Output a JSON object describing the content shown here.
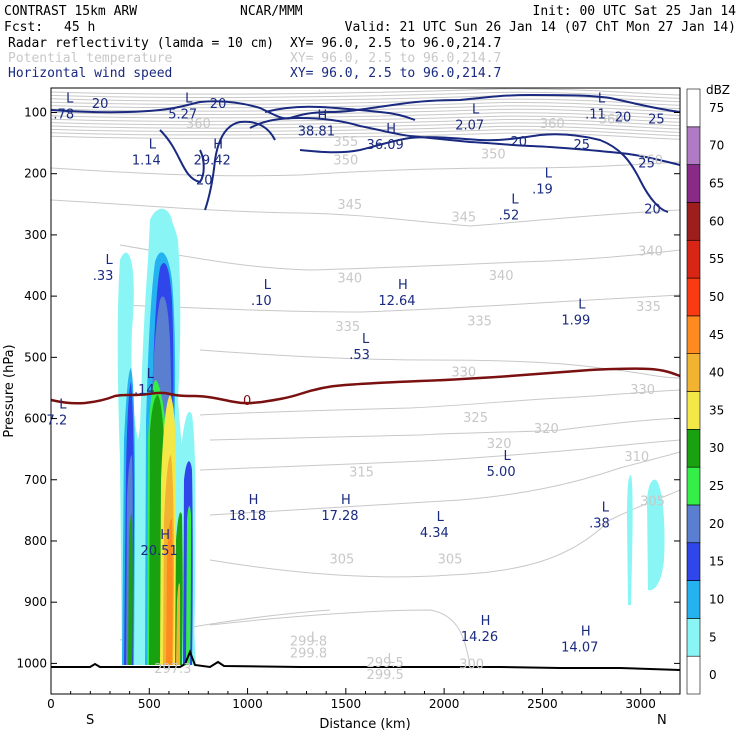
{
  "header": {
    "model": "CONTRAST 15km ARW",
    "center": "NCAR/MMM",
    "init": "Init: 00 UTC Sat 25 Jan 14",
    "fcst_label": "Fcst:",
    "fcst_value": "45 h",
    "valid": "Valid: 21 UTC Sun 26 Jan 14 (07 ChT Mon 27 Jan 14)",
    "fields": [
      {
        "name": "Radar reflectivity (lamda = 10 cm)",
        "xy": "XY=  96.0,  2.5 to  96.0,214.7",
        "color": "#000000"
      },
      {
        "name": "Potential temperature",
        "xy": "XY=  96.0,  2.5 to  96.0,214.7",
        "color": "#c8c8c8"
      },
      {
        "name": "Horizontal wind speed",
        "xy": "XY=  96.0,  2.5 to  96.0,214.7",
        "color": "#1a2a80"
      }
    ]
  },
  "chart_data": {
    "type": "contour-cross-section",
    "xlabel": "Distance (km)",
    "ylabel": "Pressure (hPa)",
    "xlim": [
      0,
      3200
    ],
    "ylim": [
      1050,
      60
    ],
    "xticks": [
      0,
      500,
      1000,
      1500,
      2000,
      2500,
      3000
    ],
    "yticks": [
      100,
      200,
      300,
      400,
      500,
      600,
      700,
      800,
      900,
      1000
    ],
    "x_end_labels": {
      "left": "S",
      "right": "N"
    },
    "colorbar": {
      "unit": "dBZ",
      "levels": [
        "0",
        "5",
        "10",
        "15",
        "20",
        "25",
        "30",
        "35",
        "40",
        "45",
        "50",
        "55",
        "60",
        "65",
        "70",
        "75"
      ],
      "colors": [
        "#ffffff",
        "#8af5f5",
        "#25b2f0",
        "#2f46ea",
        "#5a7ed0",
        "#35ef49",
        "#1aa10f",
        "#f3e845",
        "#f2b330",
        "#ff8a1f",
        "#fa3a12",
        "#d82515",
        "#9e1e1e",
        "#8a2a88",
        "#b07bc4",
        "#ffffff"
      ]
    },
    "theta_labels": [
      {
        "text": "360",
        "x": 750,
        "p": 125
      },
      {
        "text": "355",
        "x": 1500,
        "p": 155
      },
      {
        "text": "350",
        "x": 1500,
        "p": 185
      },
      {
        "text": "350",
        "x": 2250,
        "p": 175
      },
      {
        "text": "360",
        "x": 2550,
        "p": 125
      },
      {
        "text": "360",
        "x": 2850,
        "p": 118
      },
      {
        "text": "360",
        "x": 3050,
        "p": 185
      },
      {
        "text": "345",
        "x": 1520,
        "p": 258
      },
      {
        "text": "345",
        "x": 2100,
        "p": 278
      },
      {
        "text": "340",
        "x": 1520,
        "p": 378
      },
      {
        "text": "340",
        "x": 2290,
        "p": 374
      },
      {
        "text": "340",
        "x": 3050,
        "p": 334
      },
      {
        "text": "335",
        "x": 1510,
        "p": 457
      },
      {
        "text": "335",
        "x": 2180,
        "p": 448
      },
      {
        "text": "335",
        "x": 3040,
        "p": 424
      },
      {
        "text": "330",
        "x": 2100,
        "p": 531
      },
      {
        "text": "330",
        "x": 3010,
        "p": 560
      },
      {
        "text": "325",
        "x": 2160,
        "p": 606
      },
      {
        "text": "320",
        "x": 2280,
        "p": 648
      },
      {
        "text": "320",
        "x": 2520,
        "p": 624
      },
      {
        "text": "315",
        "x": 1580,
        "p": 695
      },
      {
        "text": "310",
        "x": 2980,
        "p": 669
      },
      {
        "text": "305",
        "x": 1480,
        "p": 837
      },
      {
        "text": "305",
        "x": 2030,
        "p": 837
      },
      {
        "text": "305",
        "x": 3060,
        "p": 742
      },
      {
        "text": "300",
        "x": 2140,
        "p": 1008
      },
      {
        "text": "299.8",
        "x": 1310,
        "p": 971
      },
      {
        "text": "299.5",
        "x": 1700,
        "p": 1006
      },
      {
        "text": "297.3",
        "x": 620,
        "p": 1016
      }
    ],
    "wind_labels": [
      {
        "text": "20",
        "x": 250,
        "p": 93
      },
      {
        "text": "20",
        "x": 850,
        "p": 93
      },
      {
        "text": "25",
        "x": 3080,
        "p": 118
      },
      {
        "text": "20",
        "x": 2910,
        "p": 115
      },
      {
        "text": "25",
        "x": 2700,
        "p": 160
      },
      {
        "text": "20",
        "x": 2380,
        "p": 155
      },
      {
        "text": "25",
        "x": 3030,
        "p": 190
      },
      {
        "text": "20",
        "x": 780,
        "p": 218
      },
      {
        "text": "20",
        "x": 3060,
        "p": 265
      }
    ],
    "extrema": [
      {
        "kind": "L",
        "value": ".78",
        "x": 65,
        "p": 90,
        "color": "#1a2a80"
      },
      {
        "kind": "L",
        "value": "5.27",
        "x": 670,
        "p": 90,
        "color": "#1a2a80"
      },
      {
        "kind": "L",
        "value": "2.07",
        "x": 2130,
        "p": 108,
        "color": "#1a2a80"
      },
      {
        "kind": "L",
        "value": ".11",
        "x": 2770,
        "p": 90,
        "color": "#1a2a80"
      },
      {
        "kind": "H",
        "value": "38.81",
        "x": 1350,
        "p": 118,
        "color": "#1a2a80"
      },
      {
        "kind": "H",
        "value": "36.09",
        "x": 1700,
        "p": 140,
        "color": "#1a2a80"
      },
      {
        "kind": "L",
        "value": "1.14",
        "x": 485,
        "p": 165,
        "color": "#1a2a80"
      },
      {
        "kind": "H",
        "value": "29.42",
        "x": 820,
        "p": 165,
        "color": "#1a2a80"
      },
      {
        "kind": "L",
        "value": ".19",
        "x": 2500,
        "p": 213,
        "color": "#1a2a80"
      },
      {
        "kind": "L",
        "value": ".52",
        "x": 2330,
        "p": 255,
        "color": "#1a2a80"
      },
      {
        "kind": "L",
        "value": ".33",
        "x": 265,
        "p": 354,
        "color": "#1a2a80"
      },
      {
        "kind": "L",
        "value": ".10",
        "x": 1070,
        "p": 395,
        "color": "#1a2a80"
      },
      {
        "kind": "H",
        "value": "12.64",
        "x": 1760,
        "p": 395,
        "color": "#1a2a80"
      },
      {
        "kind": "L",
        "value": "1.99",
        "x": 2670,
        "p": 427,
        "color": "#1a2a80"
      },
      {
        "kind": "L",
        "value": ".53",
        "x": 1570,
        "p": 483,
        "color": "#1a2a80"
      },
      {
        "kind": "L",
        "value": ".14",
        "x": 475,
        "p": 540,
        "color": "#1a2a80"
      },
      {
        "kind": "L",
        "value": "7.2",
        "x": 30,
        "p": 590,
        "color": "#1a2a80"
      },
      {
        "kind": "L",
        "value": "5.00",
        "x": 2290,
        "p": 674,
        "color": "#1a2a80"
      },
      {
        "kind": "H",
        "value": "18.18",
        "x": 1000,
        "p": 746,
        "color": "#1a2a80"
      },
      {
        "kind": "H",
        "value": "17.28",
        "x": 1470,
        "p": 746,
        "color": "#1a2a80"
      },
      {
        "kind": "L",
        "value": ".38",
        "x": 2790,
        "p": 758,
        "color": "#1a2a80"
      },
      {
        "kind": "L",
        "value": "4.34",
        "x": 1950,
        "p": 774,
        "color": "#1a2a80"
      },
      {
        "kind": "H",
        "value": "20.51",
        "x": 550,
        "p": 803,
        "color": "#1a2a80"
      },
      {
        "kind": "H",
        "value": "14.26",
        "x": 2180,
        "p": 944,
        "color": "#1a2a80"
      },
      {
        "kind": "H",
        "value": "14.07",
        "x": 2690,
        "p": 961,
        "color": "#1a2a80"
      },
      {
        "kind": "L",
        "value": "299.8",
        "x": 1310,
        "p": 971,
        "color": "#c8c8c8"
      },
      {
        "kind": "L",
        "value": "299.5",
        "x": 1700,
        "p": 1006,
        "color": "#c8c8c8"
      }
    ],
    "zero_isotherm_label": "0",
    "colors": {
      "theta": "#c8c8c8",
      "wind": "#1a2a80",
      "freezing_line": "#7a1010",
      "terrain": "#000000"
    },
    "reflectivity_cells": [
      {
        "x": 390,
        "p_top": 300,
        "p_bottom": 1000,
        "width": 80,
        "max_dbz": 30
      },
      {
        "x": 560,
        "p_top": 250,
        "p_bottom": 1000,
        "width": 200,
        "max_dbz": 45
      },
      {
        "x": 720,
        "p_top": 570,
        "p_bottom": 990,
        "width": 40,
        "max_dbz": 30
      },
      {
        "x": 2950,
        "p_top": 680,
        "p_bottom": 880,
        "width": 120,
        "max_dbz": 10
      }
    ]
  }
}
